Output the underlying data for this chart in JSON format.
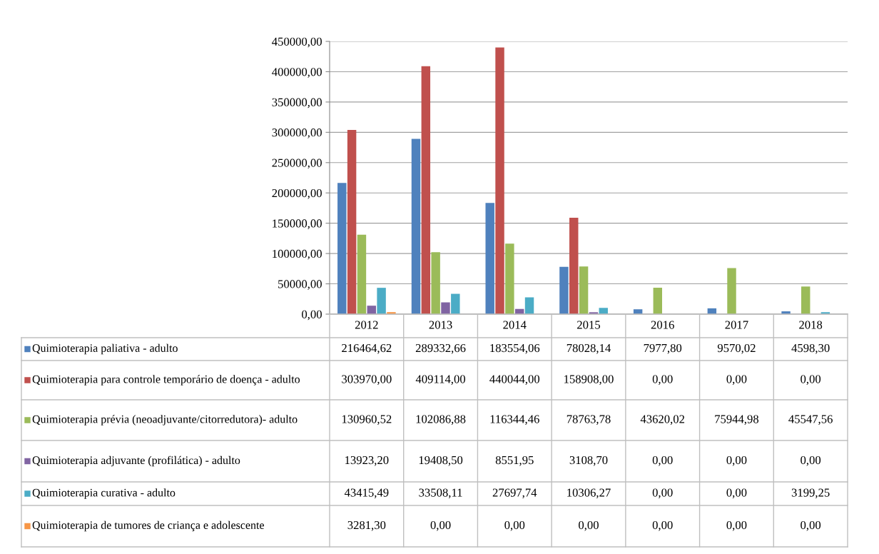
{
  "chart_data": {
    "type": "bar",
    "categories": [
      "2012",
      "2013",
      "2014",
      "2015",
      "2016",
      "2017",
      "2018"
    ],
    "ylim": [
      0,
      450000
    ],
    "yticks": [
      {
        "value": 0,
        "label": "0,00"
      },
      {
        "value": 50000,
        "label": "50000,00"
      },
      {
        "value": 100000,
        "label": "100000,00"
      },
      {
        "value": 150000,
        "label": "150000,00"
      },
      {
        "value": 200000,
        "label": "200000,00"
      },
      {
        "value": 250000,
        "label": "250000,00"
      },
      {
        "value": 300000,
        "label": "300000,00"
      },
      {
        "value": 350000,
        "label": "350000,00"
      },
      {
        "value": 400000,
        "label": "400000,00"
      },
      {
        "value": 450000,
        "label": "450000,00"
      }
    ],
    "grid": "y",
    "legend": "bottom",
    "data_labels": true,
    "series": [
      {
        "name": "Quimioterapia paliativa - adulto",
        "color": "#4f81bd",
        "values": [
          216464.62,
          289332.66,
          183554.06,
          78028.14,
          7977.8,
          9570.02,
          4598.3
        ],
        "value_labels": [
          "216464,62",
          "289332,66",
          "183554,06",
          "78028,14",
          "7977,80",
          "9570,02",
          "4598,30"
        ]
      },
      {
        "name": "Quimioterapia para controle temporário de doença - adulto",
        "color": "#c0504d",
        "values": [
          303970.0,
          409114.0,
          440044.0,
          158908.0,
          0,
          0,
          0
        ],
        "value_labels": [
          "303970,00",
          "409114,00",
          "440044,00",
          "158908,00",
          "0,00",
          "0,00",
          "0,00"
        ]
      },
      {
        "name": "Quimioterapia prévia (neoadjuvante/citorredutora)- adulto",
        "color": "#9bbb59",
        "values": [
          130960.52,
          102086.88,
          116344.46,
          78763.78,
          43620.02,
          75944.98,
          45547.56
        ],
        "value_labels": [
          "130960,52",
          "102086,88",
          "116344,46",
          "78763,78",
          "43620,02",
          "75944,98",
          "45547,56"
        ]
      },
      {
        "name": "Quimioterapia adjuvante (profilática) - adulto",
        "color": "#8064a2",
        "values": [
          13923.2,
          19408.5,
          8551.95,
          3108.7,
          0,
          0,
          0
        ],
        "value_labels": [
          "13923,20",
          "19408,50",
          "8551,95",
          "3108,70",
          "0,00",
          "0,00",
          "0,00"
        ]
      },
      {
        "name": "Quimioterapia curativa - adulto",
        "color": "#4bacc6",
        "values": [
          43415.49,
          33508.11,
          27697.74,
          10306.27,
          0,
          0,
          3199.25
        ],
        "value_labels": [
          "43415,49",
          "33508,11",
          "27697,74",
          "10306,27",
          "0,00",
          "0,00",
          "3199,25"
        ]
      },
      {
        "name": "Quimioterapia de tumores de criança e adolescente",
        "color": "#f79646",
        "values": [
          3281.3,
          0,
          0,
          0,
          0,
          0,
          0
        ],
        "value_labels": [
          "3281,30",
          "0,00",
          "0,00",
          "0,00",
          "0,00",
          "0,00",
          "0,00"
        ]
      }
    ]
  }
}
